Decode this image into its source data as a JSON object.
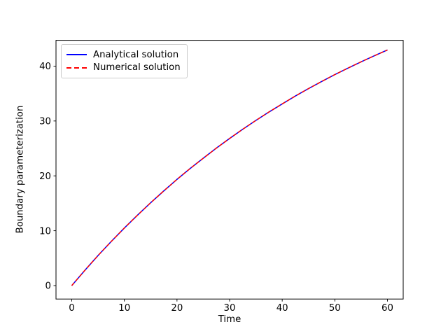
{
  "figure": {
    "background": "#ffffff",
    "frame_color": "#000000",
    "text_color": "#000000"
  },
  "chart_data": {
    "type": "line",
    "title": "",
    "xlabel": "Time",
    "ylabel": "Boundary parameterization",
    "x": [
      0,
      2.5,
      5,
      7.5,
      10,
      12.5,
      15,
      17.5,
      20,
      22.5,
      25,
      27.5,
      30,
      32.5,
      35,
      37.5,
      40,
      42.5,
      45,
      47.5,
      50,
      52.5,
      55,
      57.5,
      60
    ],
    "series": [
      {
        "name": "Analytical solution",
        "color": "#0000ff",
        "style": "solid",
        "values": [
          0,
          2.79,
          5.48,
          8.03,
          10.5,
          12.85,
          15.11,
          17.27,
          19.35,
          21.34,
          23.22,
          25.07,
          26.82,
          28.5,
          30.11,
          31.65,
          33.12,
          34.54,
          35.9,
          37.2,
          38.45,
          39.64,
          40.78,
          41.88,
          42.94
        ]
      },
      {
        "name": "Numerical solution",
        "color": "#ff0000",
        "style": "dashed",
        "values": [
          0,
          2.79,
          5.48,
          8.03,
          10.5,
          12.85,
          15.11,
          17.27,
          19.35,
          21.34,
          23.22,
          25.07,
          26.82,
          28.5,
          30.11,
          31.65,
          33.12,
          34.54,
          35.9,
          37.2,
          38.45,
          39.64,
          40.78,
          41.88,
          42.94
        ]
      }
    ],
    "xlim": [
      -3,
      63
    ],
    "ylim": [
      -2.45,
      44.7
    ],
    "xticks": [
      0,
      10,
      20,
      30,
      40,
      50,
      60
    ],
    "yticks": [
      0,
      10,
      20,
      30,
      40
    ],
    "grid": false,
    "legend_position": "upper left"
  }
}
